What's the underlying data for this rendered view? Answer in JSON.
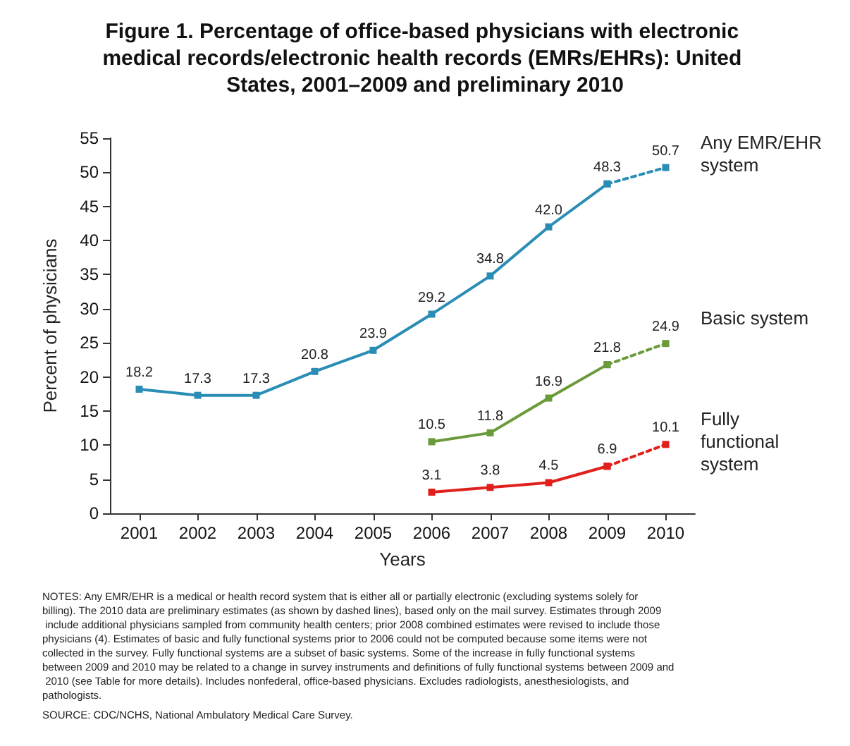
{
  "chart_data": {
    "type": "line",
    "title": "Figure 1. Percentage of office-based physicians with electronic medical records/electronic health records (EMRs/EHRs): United States, 2001–2009 and preliminary 2010",
    "xlabel": "Years",
    "ylabel": "Percent of physicians",
    "categories": [
      "2001",
      "2002",
      "2003",
      "2004",
      "2005",
      "2006",
      "2007",
      "2008",
      "2009",
      "2010"
    ],
    "ylim": [
      0,
      55
    ],
    "yticks": [
      0,
      5,
      10,
      15,
      20,
      25,
      30,
      35,
      40,
      45,
      50,
      55
    ],
    "grid": false,
    "legend": false,
    "marker": "square",
    "series": [
      {
        "name": "Any EMR/EHR system",
        "color": "#2a8db5",
        "line_style": "solid",
        "values": [
          18.2,
          17.3,
          17.3,
          20.8,
          23.9,
          29.2,
          34.8,
          42.0,
          48.3,
          null
        ],
        "value_labels": [
          "18.2",
          "17.3",
          "17.3",
          "20.8",
          "23.9",
          "29.2",
          "34.8",
          "42.0",
          "48.3",
          null
        ]
      },
      {
        "color": "#2a8db5",
        "line_style": "dotted",
        "values": [
          null,
          null,
          null,
          null,
          null,
          null,
          null,
          null,
          48.3,
          50.7
        ],
        "value_labels": [
          null,
          null,
          null,
          null,
          null,
          null,
          null,
          null,
          null,
          "50.7"
        ]
      },
      {
        "name": "Basic system",
        "color": "#6a9a3a",
        "line_style": "solid",
        "values": [
          null,
          null,
          null,
          null,
          null,
          10.5,
          11.8,
          16.9,
          21.8,
          null
        ],
        "value_labels": [
          null,
          null,
          null,
          null,
          null,
          "10.5",
          "11.8",
          "16.9",
          "21.8",
          null
        ]
      },
      {
        "color": "#6a9a3a",
        "line_style": "dotted",
        "values": [
          null,
          null,
          null,
          null,
          null,
          null,
          null,
          null,
          21.8,
          24.9
        ],
        "value_labels": [
          null,
          null,
          null,
          null,
          null,
          null,
          null,
          null,
          null,
          "24.9"
        ]
      },
      {
        "name": "Fully functional system",
        "color": "#e0201c",
        "line_style": "solid",
        "values": [
          null,
          null,
          null,
          null,
          null,
          3.1,
          3.8,
          4.5,
          6.9,
          null
        ],
        "value_labels": [
          null,
          null,
          null,
          null,
          null,
          "3.1",
          "3.8",
          "4.5",
          "6.9",
          null
        ]
      },
      {
        "color": "#e0201c",
        "line_style": "dotted",
        "values": [
          null,
          null,
          null,
          null,
          null,
          null,
          null,
          null,
          6.9,
          10.1
        ],
        "value_labels": [
          null,
          null,
          null,
          null,
          null,
          null,
          null,
          null,
          null,
          "10.1"
        ]
      }
    ],
    "annotations": [
      "NOTES: Any EMR/EHR is a medical or health record system that is either all or partially electronic (excluding systems solely for billing). The 2010 data are preliminary estimates (as shown by dashed lines), based only on the mail survey. Estimates through 2009 include additional physicians sampled from community health centers; prior 2008 combined estimates were revised to include those physicians (4). Estimates of basic and fully functional systems prior to 2006 could not be computed because some items were not collected in the survey. Fully functional systems are a subset of basic systems. Some of the increase in fully functional systems between 2009 and 2010 may be related to a change in survey instruments and definitions of fully functional systems between 2009 and 2010 (see Table for more details). Includes nonfederal, office-based physicians. Excludes radiologists, anesthesiologists, and pathologists.",
      "SOURCE: CDC/NCHS, National Ambulatory Medical Care Survey."
    ]
  }
}
